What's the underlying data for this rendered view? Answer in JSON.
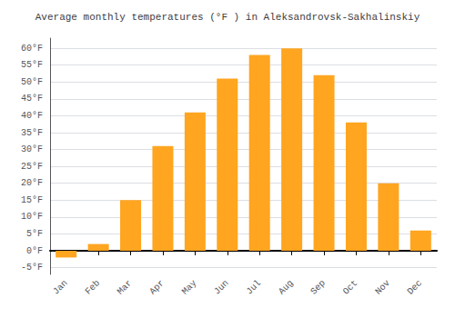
{
  "chart_data": {
    "type": "bar",
    "title": "Average monthly temperatures (°F ) in Aleksandrovsk-Sakhalinskiy",
    "categories": [
      "Jan",
      "Feb",
      "Mar",
      "Apr",
      "May",
      "Jun",
      "Jul",
      "Aug",
      "Sep",
      "Oct",
      "Nov",
      "Dec"
    ],
    "values": [
      -2,
      2,
      15,
      31,
      41,
      51,
      58,
      60,
      52,
      38,
      20,
      6
    ],
    "color": "#FFA520",
    "ylim": [
      -7,
      63
    ],
    "yticks": [
      {
        "value": -5,
        "label": "-5°F"
      },
      {
        "value": 0,
        "label": "0°F"
      },
      {
        "value": 5,
        "label": "5°F"
      },
      {
        "value": 10,
        "label": "10°F"
      },
      {
        "value": 15,
        "label": "15°F"
      },
      {
        "value": 20,
        "label": "20°F"
      },
      {
        "value": 25,
        "label": "25°F"
      },
      {
        "value": 30,
        "label": "30°F"
      },
      {
        "value": 35,
        "label": "35°F"
      },
      {
        "value": 40,
        "label": "40°F"
      },
      {
        "value": 45,
        "label": "45°F"
      },
      {
        "value": 50,
        "label": "50°F"
      },
      {
        "value": 55,
        "label": "55°F"
      },
      {
        "value": 60,
        "label": "60°F"
      }
    ],
    "grid": true
  }
}
